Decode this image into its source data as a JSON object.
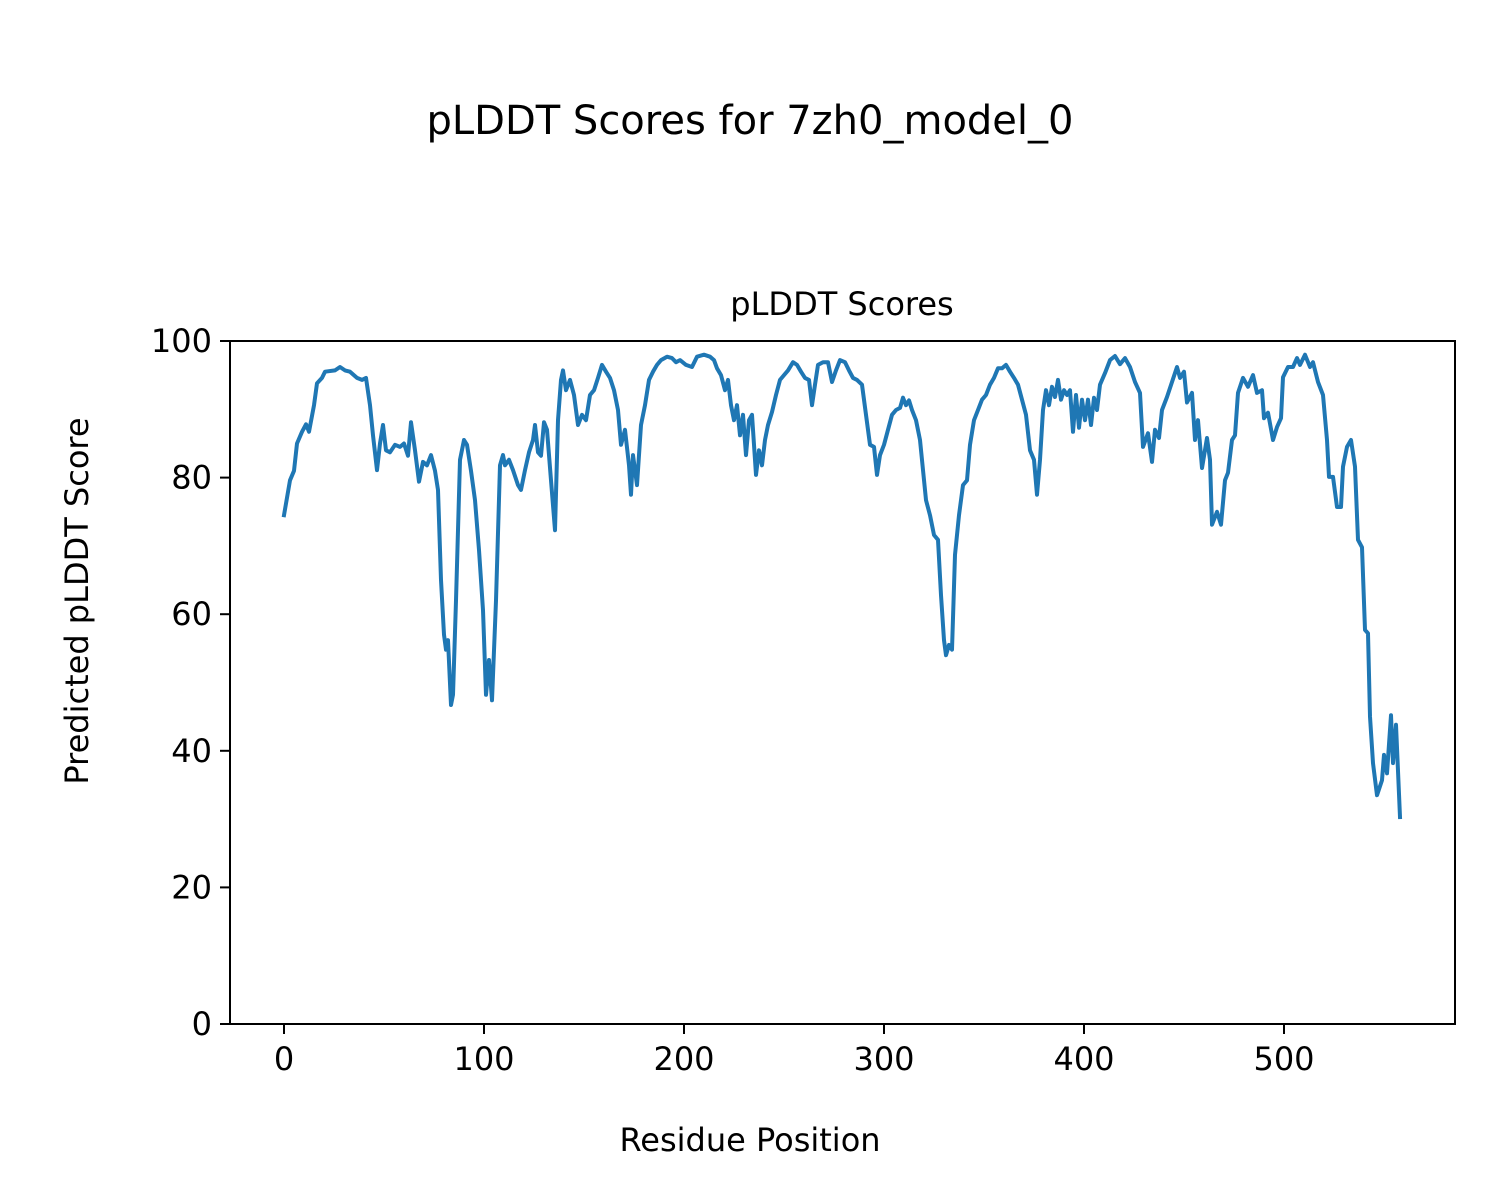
{
  "figure_title": "pLDDT Scores for 7zh0_model_0",
  "chart_data": {
    "type": "line",
    "title": "pLDDT Scores",
    "xlabel": "Residue Position",
    "ylabel": "Predicted pLDDT Score",
    "xlim": [
      -27,
      585.5
    ],
    "ylim": [
      0,
      100
    ],
    "xticks": [
      0,
      100,
      200,
      300,
      400,
      500
    ],
    "yticks": [
      0,
      20,
      40,
      60,
      80,
      100
    ],
    "grid": false,
    "line_color": "#1f77b4",
    "x": [
      0,
      3,
      5,
      6.5,
      9,
      11,
      12.5,
      15,
      16.5,
      19,
      20.5,
      25.5,
      28,
      30.5,
      33,
      36.5,
      39,
      41,
      43,
      44.5,
      46.5,
      48,
      49.5,
      51,
      53,
      55.5,
      58,
      60,
      62,
      63.5,
      65.5,
      67.5,
      69.5,
      71.5,
      73.5,
      75.5,
      77,
      78.5,
      80,
      81,
      82,
      83.5,
      84.5,
      86,
      88,
      90,
      91.5,
      93.5,
      95.5,
      97.5,
      99.5,
      101,
      102.5,
      104,
      106,
      108,
      109.5,
      110.5,
      112.5,
      114.5,
      117,
      118.5,
      120.5,
      122.5,
      124.5,
      125.5,
      127,
      128.5,
      130,
      131.5,
      133.5,
      135.5,
      137,
      138.5,
      139.5,
      141,
      143,
      145,
      147,
      149,
      151,
      153,
      155,
      157,
      159,
      161,
      163,
      165,
      167,
      168.5,
      170.5,
      172.5,
      173.5,
      174.5,
      176.5,
      178.5,
      180.5,
      182.5,
      184.5,
      186.5,
      188.5,
      191.5,
      194,
      196,
      198,
      201,
      204,
      206.5,
      210,
      213,
      215,
      216.5,
      218.5,
      220.5,
      222,
      223.5,
      225,
      226.5,
      228,
      229.5,
      231,
      232.5,
      234,
      236,
      237.5,
      239,
      240.5,
      242,
      244,
      246,
      248,
      250,
      252,
      254.5,
      256.5,
      258.5,
      260.5,
      262.5,
      264,
      265.5,
      267,
      269.5,
      272,
      274,
      276,
      278,
      280.5,
      282.5,
      284.5,
      286.5,
      289,
      291,
      293,
      295,
      296.5,
      298,
      300,
      302,
      304,
      306,
      308,
      309.5,
      311,
      312.5,
      314,
      316,
      318,
      319.5,
      321,
      323,
      325,
      327,
      328.5,
      330,
      331,
      332.5,
      334,
      335.5,
      337.5,
      339.5,
      341.5,
      343,
      345,
      347,
      349,
      351,
      353,
      355,
      357,
      359,
      361,
      363,
      365,
      367,
      369,
      371,
      373,
      375,
      376.5,
      378,
      379.5,
      381,
      382.5,
      384,
      385.5,
      387,
      388.5,
      390,
      391.5,
      393,
      394.5,
      396,
      397.5,
      399,
      400.5,
      402,
      403.5,
      405,
      406.5,
      408,
      410.5,
      413,
      415.5,
      418,
      420.5,
      423,
      425.5,
      428,
      429.5,
      432,
      434,
      435.5,
      437.5,
      439,
      441.5,
      444,
      446.5,
      448,
      450,
      451.5,
      454,
      455.5,
      457,
      459,
      461.5,
      463,
      464,
      466.5,
      468.5,
      470.5,
      472,
      474,
      475.5,
      477,
      479.5,
      482,
      484.5,
      486.5,
      489,
      490,
      492,
      494.5,
      496.5,
      498.5,
      499.5,
      502,
      504.5,
      506.5,
      508,
      510.5,
      513,
      514.5,
      517,
      519.5,
      521.5,
      522.5,
      524.5,
      526.5,
      528.5,
      529.5,
      531.5,
      533.5,
      535.5,
      537,
      539,
      540.5,
      542,
      543,
      544.5,
      546.5,
      549,
      550,
      551.5,
      553.5,
      554.5,
      556,
      558
    ],
    "y": [
      74.5,
      79.6,
      81,
      85,
      86.7,
      87.8,
      86.7,
      90.6,
      93.8,
      94.6,
      95.5,
      95.7,
      96.2,
      95.7,
      95.5,
      94.6,
      94.3,
      94.6,
      90.6,
      86.2,
      81.1,
      85,
      87.7,
      84,
      83.7,
      84.8,
      84.5,
      85,
      83.2,
      88.1,
      84,
      79.4,
      82.3,
      81.8,
      83.3,
      81,
      78.2,
      65,
      57,
      54.8,
      56.2,
      46.7,
      48.2,
      62,
      82.6,
      85.5,
      84.8,
      81,
      76.7,
      69.4,
      60.6,
      48.2,
      53.3,
      47.4,
      62,
      81.8,
      83.3,
      81.8,
      82.6,
      81.1,
      78.9,
      78.2,
      81.1,
      83.7,
      85.5,
      87.7,
      83.7,
      83.2,
      88.1,
      87,
      79.6,
      72.3,
      88.4,
      94.3,
      95.7,
      92.8,
      94.3,
      92.1,
      87.7,
      89.2,
      88.4,
      92.1,
      92.8,
      94.6,
      96.5,
      95.5,
      94.6,
      92.8,
      89.9,
      84.8,
      87,
      81.8,
      77.5,
      83.3,
      78.9,
      87.7,
      90.6,
      94.3,
      95.5,
      96.5,
      97.2,
      97.7,
      97.5,
      96.9,
      97.2,
      96.5,
      96.2,
      97.7,
      98,
      97.7,
      97.2,
      96,
      95,
      92.8,
      94.3,
      90.6,
      88.4,
      90.6,
      86.2,
      89.2,
      83.3,
      88.4,
      89.2,
      80.4,
      84,
      81.8,
      85.5,
      87.7,
      89.6,
      92.1,
      94.3,
      95,
      95.7,
      96.9,
      96.5,
      95.5,
      94.6,
      94.3,
      90.6,
      93.6,
      96.5,
      96.9,
      96.9,
      94,
      95.7,
      97.2,
      96.9,
      95.7,
      94.6,
      94.3,
      93.6,
      89.2,
      84.8,
      84.5,
      80.4,
      83.3,
      84.8,
      87,
      89.2,
      89.9,
      90.2,
      91.7,
      90.6,
      91.3,
      89.9,
      88.4,
      85.5,
      81.1,
      76.7,
      74.5,
      71.6,
      70.9,
      62.8,
      56.2,
      54,
      55.5,
      54.8,
      68.7,
      74.5,
      78.9,
      79.6,
      84.8,
      88.4,
      89.9,
      91.4,
      92.1,
      93.6,
      94.6,
      96,
      96,
      96.5,
      95.5,
      94.6,
      93.6,
      91.4,
      89.2,
      84,
      82.6,
      77.5,
      82.6,
      89.9,
      92.8,
      90.6,
      93.3,
      91.8,
      94.3,
      91.4,
      92.8,
      92.1,
      92.8,
      86.7,
      92.1,
      87.3,
      91.4,
      88.4,
      91.4,
      87.7,
      91.7,
      89.9,
      93.6,
      95.3,
      97.2,
      97.8,
      96.6,
      97.5,
      96.2,
      94,
      92.4,
      84.5,
      86.5,
      82.3,
      87,
      85.8,
      89.9,
      91.8,
      94,
      96.2,
      94.6,
      95.5,
      91,
      92.4,
      85.5,
      88.4,
      81.4,
      85.8,
      82.6,
      73.1,
      75,
      73.1,
      79.6,
      80.7,
      85.5,
      86.2,
      92.4,
      94.6,
      93.3,
      95,
      92.4,
      92.8,
      88.7,
      89.5,
      85.5,
      87.4,
      88.7,
      94.7,
      96.2,
      96.2,
      97.5,
      96.5,
      98,
      96.2,
      96.9,
      94,
      92.1,
      85.5,
      80.1,
      80.1,
      75.7,
      75.7,
      81.6,
      84.5,
      85.5,
      81.6,
      70.9,
      69.8,
      57.7,
      57.2,
      45,
      38.2,
      33.5,
      35.7,
      39.4,
      36.7,
      45.2,
      38.2,
      43.8,
      30.3
    ]
  }
}
